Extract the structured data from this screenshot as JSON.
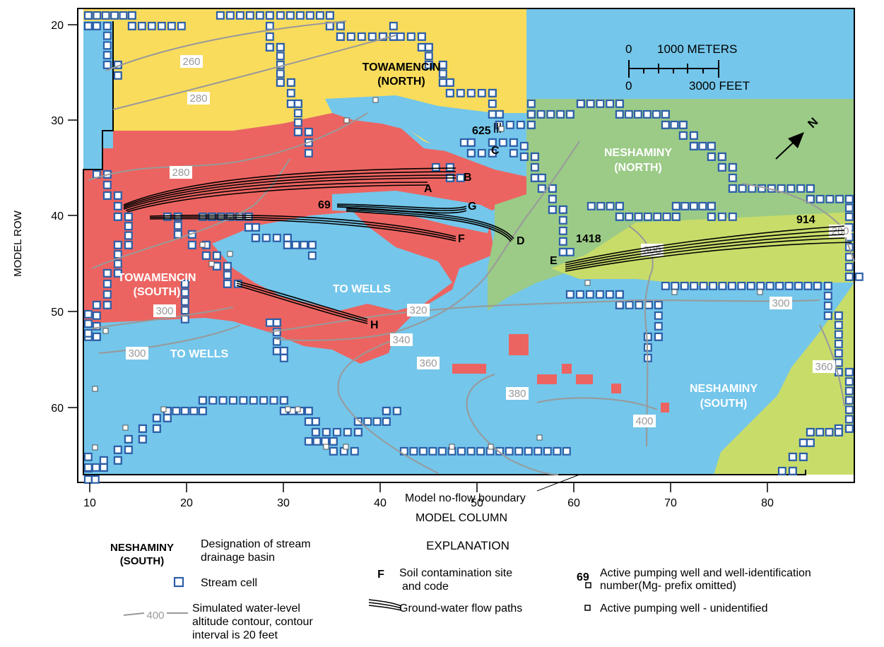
{
  "axes": {
    "y_label": "MODEL ROW",
    "x_label": "MODEL COLUMN",
    "y_ticks": [
      "20",
      "30",
      "40",
      "50",
      "60"
    ],
    "x_ticks": [
      "10",
      "20",
      "30",
      "40",
      "50",
      "60",
      "70",
      "80"
    ]
  },
  "basins": {
    "tow_north": {
      "line1": "TOWAMENCIN",
      "line2": "(NORTH)"
    },
    "tow_south": {
      "line1": "TOWAMENCIN",
      "line2": "(SOUTH)"
    },
    "nesh_north": {
      "line1": "NESHAMINY",
      "line2": "(NORTH)"
    },
    "nesh_south": {
      "line1": "NESHAMINY",
      "line2": "(SOUTH)"
    }
  },
  "to_wells": [
    "TO WELLS",
    "TO WELLS"
  ],
  "contours": [
    "260",
    "280",
    "280",
    "280",
    "300",
    "300",
    "300",
    "300",
    "320",
    "340",
    "360",
    "360",
    "380",
    "400"
  ],
  "sites": [
    "A",
    "B",
    "C",
    "D",
    "E",
    "F",
    "G",
    "H"
  ],
  "wells": [
    "625",
    "69",
    "1418",
    "914"
  ],
  "scale_bar": {
    "zero_top": "0",
    "meters": "1000 METERS",
    "zero_bottom": "0",
    "feet": "3000 FEET"
  },
  "north_arrow": "N",
  "boundary_label": "Model no-flow boundary",
  "explanation": {
    "title": "EXPLANATION",
    "basin_sample_1": "NESHAMINY",
    "basin_sample_2": "(SOUTH)",
    "basin_text_1": "Designation of stream",
    "basin_text_2": "drainage basin",
    "stream_cell": "Stream cell",
    "contour_sample": "400",
    "contour_text_1": "Simulated water-level",
    "contour_text_2": "altitude contour, contour",
    "contour_text_3": "interval is 20 feet",
    "site_sample": "F",
    "site_text_1": "Soil contamination site",
    "site_text_2": "and code",
    "flow_text": "Ground-water flow paths",
    "well_sample": "69",
    "well_text_1": "Active pumping well and well-identification",
    "well_text_2": "number(Mg- prefix omitted)",
    "unid_text": "Active pumping well - unidentified"
  },
  "colors": {
    "towamencin_north": "#f9dc5c",
    "towamencin_south": "#ec6461",
    "to_wells": "#74c6ea",
    "neshaminy_north": "#9bcb87",
    "neshaminy_south": "#c8dc6a",
    "stream_cell": "#2c5fa8",
    "contour": "#999999"
  }
}
